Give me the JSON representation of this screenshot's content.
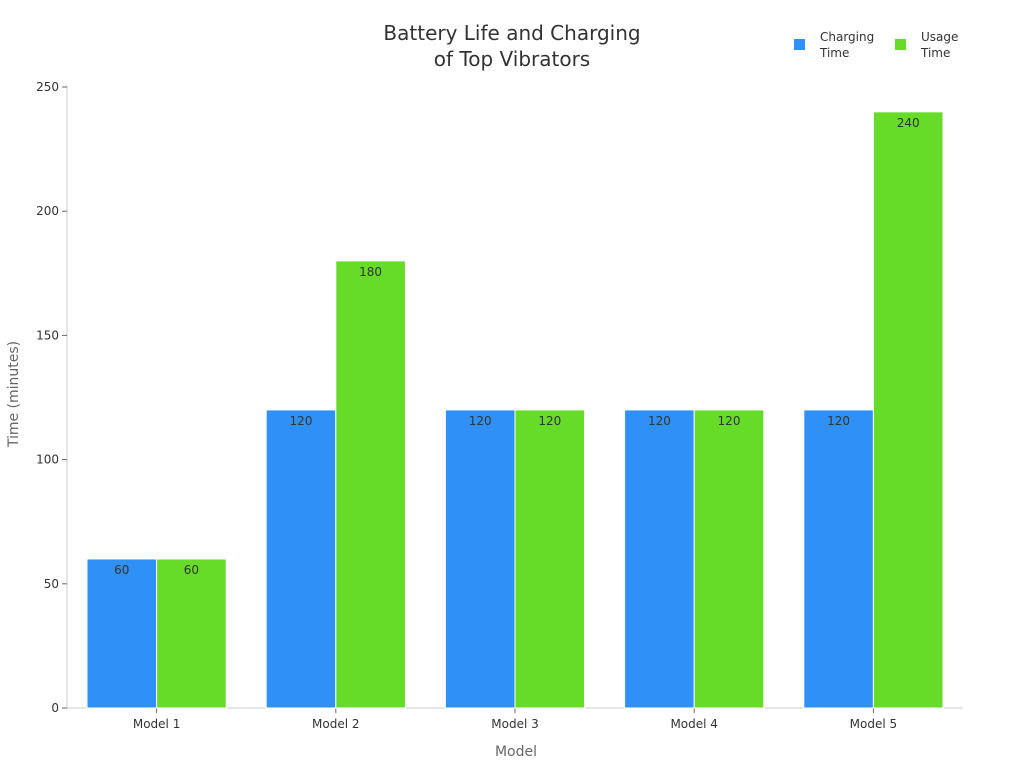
{
  "chart_data": {
    "type": "bar",
    "title_lines": [
      "Battery Life and Charging",
      "of Top Vibrators"
    ],
    "xlabel": "Model",
    "ylabel": "Time (minutes)",
    "categories": [
      "Model 1",
      "Model 2",
      "Model 3",
      "Model 4",
      "Model 5"
    ],
    "series": [
      {
        "name_lines": [
          "Charging",
          "Time"
        ],
        "color": "#2F91F7",
        "values": [
          60,
          120,
          120,
          120,
          120
        ]
      },
      {
        "name_lines": [
          "Usage",
          "Time"
        ],
        "color": "#66DB28",
        "values": [
          60,
          180,
          120,
          120,
          240
        ]
      }
    ],
    "ylim": [
      0,
      250
    ],
    "yticks": [
      0,
      50,
      100,
      150,
      200,
      250
    ],
    "grid": false,
    "legend": "top-right",
    "data_labels": true
  }
}
